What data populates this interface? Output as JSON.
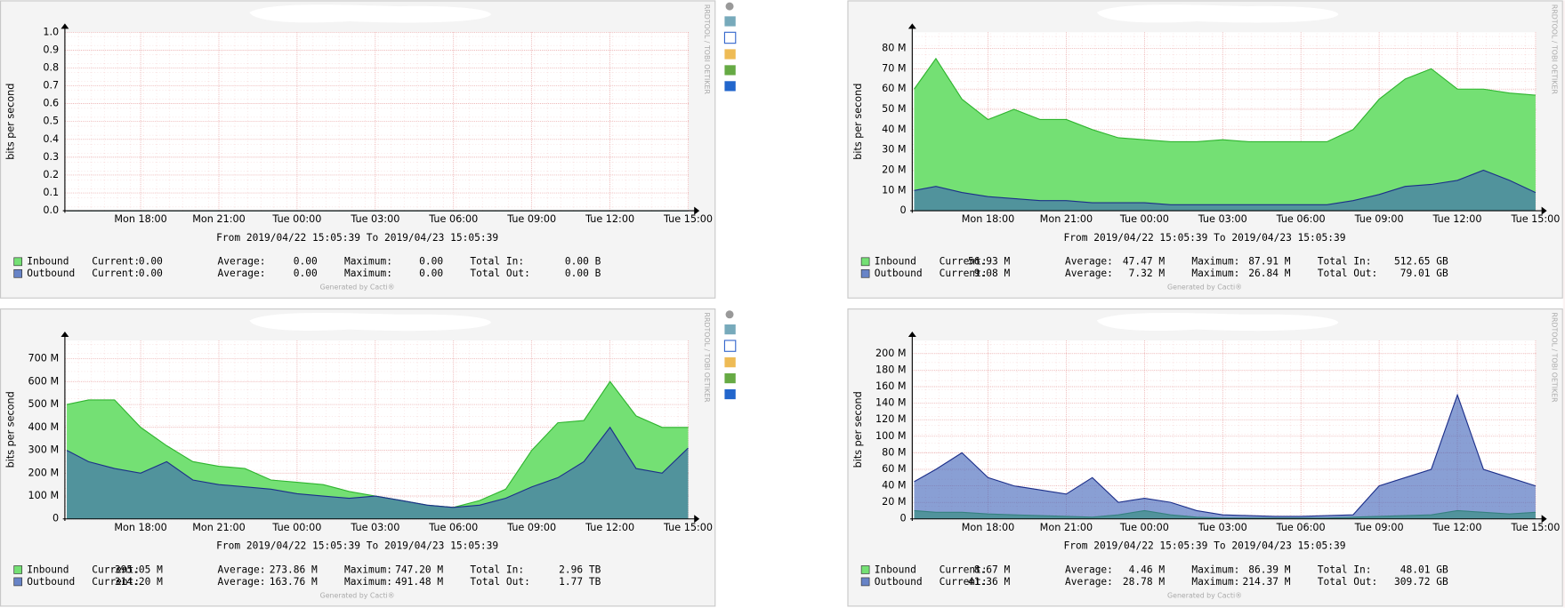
{
  "chart_data": [
    {
      "type": "area",
      "y_label": "bits per second",
      "period": "From 2019/04/22 15:05:39 To 2019/04/23 15:05:39",
      "footer": "Generated by Cacti®",
      "side_text": "RRDTOOL / TOBI OETIKER",
      "x": [
        "2019-04-22 15:10",
        "2019-04-22 16:00",
        "2019-04-22 17:00",
        "2019-04-22 18:00",
        "2019-04-22 19:00",
        "2019-04-22 20:00",
        "2019-04-22 21:00",
        "2019-04-22 22:00",
        "2019-04-22 23:00",
        "2019-04-23 00:00",
        "2019-04-23 01:00",
        "2019-04-23 02:00",
        "2019-04-23 03:00",
        "2019-04-23 04:00",
        "2019-04-23 05:00",
        "2019-04-23 06:00",
        "2019-04-23 07:00",
        "2019-04-23 08:00",
        "2019-04-23 09:00",
        "2019-04-23 10:00",
        "2019-04-23 11:00",
        "2019-04-23 12:00",
        "2019-04-23 13:00",
        "2019-04-23 14:00",
        "2019-04-23 15:00"
      ],
      "xlim": [
        "2019-04-22 15:05:39",
        "2019-04-23 15:05:39"
      ],
      "xticks": [
        {
          "value": "2019-04-22 18:00",
          "label": "Mon 18:00"
        },
        {
          "value": "2019-04-22 21:00",
          "label": "Mon 21:00"
        },
        {
          "value": "2019-04-23 00:00",
          "label": "Tue 00:00"
        },
        {
          "value": "2019-04-23 03:00",
          "label": "Tue 03:00"
        },
        {
          "value": "2019-04-23 06:00",
          "label": "Tue 06:00"
        },
        {
          "value": "2019-04-23 09:00",
          "label": "Tue 09:00"
        },
        {
          "value": "2019-04-23 12:00",
          "label": "Tue 12:00"
        },
        {
          "value": "2019-04-23 15:00",
          "label": "Tue 15:00"
        }
      ],
      "ylim": [
        0,
        1
      ],
      "yticks": [
        {
          "value": 0,
          "label": "0.0"
        },
        0.1,
        0.2,
        0.3,
        0.4,
        0.5,
        0.6,
        0.7,
        0.8,
        0.9,
        {
          "value": 1,
          "label": "1.0"
        }
      ],
      "grid": true,
      "stat_labels": [
        "Current:",
        "Average:",
        "Maximum:"
      ],
      "series": [
        {
          "name": "Inbound",
          "color": "#74e074",
          "line_color": "#2fb52f",
          "total_label": "Total In:",
          "stats": [
            "0.00",
            "0.00",
            "0.00",
            "0.00 B"
          ],
          "values": [
            0,
            0,
            0,
            0,
            0,
            0,
            0,
            0,
            0,
            0,
            0,
            0,
            0,
            0,
            0,
            0,
            0,
            0,
            0,
            0,
            0,
            0,
            0,
            0,
            0
          ]
        },
        {
          "name": "Outbound",
          "color": "#3a5fb8",
          "line_color": "#1c2f8a",
          "total_label": "Total Out:",
          "stats": [
            "0.00",
            "0.00",
            "0.00",
            "0.00 B"
          ],
          "values": [
            0,
            0,
            0,
            0,
            0,
            0,
            0,
            0,
            0,
            0,
            0,
            0,
            0,
            0,
            0,
            0,
            0,
            0,
            0,
            0,
            0,
            0,
            0,
            0,
            0
          ]
        }
      ]
    },
    {
      "type": "area",
      "y_label": "bits per second",
      "period": "From 2019/04/22 15:05:39 To 2019/04/23 15:05:39",
      "footer": "Generated by Cacti®",
      "side_text": "RRDTOOL / TOBI OETIKER",
      "x": [
        "2019-04-22 15:10",
        "2019-04-22 16:00",
        "2019-04-22 17:00",
        "2019-04-22 18:00",
        "2019-04-22 19:00",
        "2019-04-22 20:00",
        "2019-04-22 21:00",
        "2019-04-22 22:00",
        "2019-04-22 23:00",
        "2019-04-23 00:00",
        "2019-04-23 01:00",
        "2019-04-23 02:00",
        "2019-04-23 03:00",
        "2019-04-23 04:00",
        "2019-04-23 05:00",
        "2019-04-23 06:00",
        "2019-04-23 07:00",
        "2019-04-23 08:00",
        "2019-04-23 09:00",
        "2019-04-23 10:00",
        "2019-04-23 11:00",
        "2019-04-23 12:00",
        "2019-04-23 13:00",
        "2019-04-23 14:00",
        "2019-04-23 15:00"
      ],
      "xlim": [
        "2019-04-22 15:05:39",
        "2019-04-23 15:05:39"
      ],
      "xticks": [
        {
          "value": "2019-04-22 18:00",
          "label": "Mon 18:00"
        },
        {
          "value": "2019-04-22 21:00",
          "label": "Mon 21:00"
        },
        {
          "value": "2019-04-23 00:00",
          "label": "Tue 00:00"
        },
        {
          "value": "2019-04-23 03:00",
          "label": "Tue 03:00"
        },
        {
          "value": "2019-04-23 06:00",
          "label": "Tue 06:00"
        },
        {
          "value": "2019-04-23 09:00",
          "label": "Tue 09:00"
        },
        {
          "value": "2019-04-23 12:00",
          "label": "Tue 12:00"
        },
        {
          "value": "2019-04-23 15:00",
          "label": "Tue 15:00"
        }
      ],
      "ylim": [
        0,
        88
      ],
      "yticks": [
        0,
        {
          "value": 10,
          "label": "10 M"
        },
        {
          "value": 20,
          "label": "20 M"
        },
        {
          "value": 30,
          "label": "30 M"
        },
        {
          "value": 40,
          "label": "40 M"
        },
        {
          "value": 50,
          "label": "50 M"
        },
        {
          "value": 60,
          "label": "60 M"
        },
        {
          "value": 70,
          "label": "70 M"
        },
        {
          "value": 80,
          "label": "80 M"
        }
      ],
      "grid": true,
      "stat_labels": [
        "Current:",
        "Average:",
        "Maximum:"
      ],
      "series": [
        {
          "name": "Inbound",
          "color": "#74e074",
          "line_color": "#2fb52f",
          "total_label": "Total In:",
          "stats": [
            "56.93 M",
            "47.47 M",
            "87.91 M",
            "512.65 GB"
          ],
          "values": [
            60,
            75,
            55,
            45,
            50,
            45,
            45,
            40,
            36,
            35,
            34,
            34,
            35,
            34,
            34,
            34,
            34,
            40,
            55,
            65,
            70,
            60,
            60,
            58,
            57
          ]
        },
        {
          "name": "Outbound",
          "color": "#3a5fb8",
          "line_color": "#1c2f8a",
          "total_label": "Total Out:",
          "stats": [
            "9.08 M",
            "7.32 M",
            "26.84 M",
            "79.01 GB"
          ],
          "values": [
            10,
            12,
            9,
            7,
            6,
            5,
            5,
            4,
            4,
            4,
            3,
            3,
            3,
            3,
            3,
            3,
            3,
            5,
            8,
            12,
            13,
            15,
            20,
            15,
            9
          ]
        }
      ]
    },
    {
      "type": "area",
      "y_label": "bits per second",
      "period": "From 2019/04/22 15:05:39 To 2019/04/23 15:05:39",
      "footer": "Generated by Cacti®",
      "side_text": "RRDTOOL / TOBI OETIKER",
      "x": [
        "2019-04-22 15:10",
        "2019-04-22 16:00",
        "2019-04-22 17:00",
        "2019-04-22 18:00",
        "2019-04-22 19:00",
        "2019-04-22 20:00",
        "2019-04-22 21:00",
        "2019-04-22 22:00",
        "2019-04-22 23:00",
        "2019-04-23 00:00",
        "2019-04-23 01:00",
        "2019-04-23 02:00",
        "2019-04-23 03:00",
        "2019-04-23 04:00",
        "2019-04-23 05:00",
        "2019-04-23 06:00",
        "2019-04-23 07:00",
        "2019-04-23 08:00",
        "2019-04-23 09:00",
        "2019-04-23 10:00",
        "2019-04-23 11:00",
        "2019-04-23 12:00",
        "2019-04-23 13:00",
        "2019-04-23 14:00",
        "2019-04-23 15:00"
      ],
      "xlim": [
        "2019-04-22 15:05:39",
        "2019-04-23 15:05:39"
      ],
      "xticks": [
        {
          "value": "2019-04-22 18:00",
          "label": "Mon 18:00"
        },
        {
          "value": "2019-04-22 21:00",
          "label": "Mon 21:00"
        },
        {
          "value": "2019-04-23 00:00",
          "label": "Tue 00:00"
        },
        {
          "value": "2019-04-23 03:00",
          "label": "Tue 03:00"
        },
        {
          "value": "2019-04-23 06:00",
          "label": "Tue 06:00"
        },
        {
          "value": "2019-04-23 09:00",
          "label": "Tue 09:00"
        },
        {
          "value": "2019-04-23 12:00",
          "label": "Tue 12:00"
        },
        {
          "value": "2019-04-23 15:00",
          "label": "Tue 15:00"
        }
      ],
      "ylim": [
        0,
        780
      ],
      "yticks": [
        0,
        {
          "value": 100,
          "label": "100 M"
        },
        {
          "value": 200,
          "label": "200 M"
        },
        {
          "value": 300,
          "label": "300 M"
        },
        {
          "value": 400,
          "label": "400 M"
        },
        {
          "value": 500,
          "label": "500 M"
        },
        {
          "value": 600,
          "label": "600 M"
        },
        {
          "value": 700,
          "label": "700 M"
        }
      ],
      "grid": true,
      "stat_labels": [
        "Current:",
        "Average:",
        "Maximum:"
      ],
      "series": [
        {
          "name": "Inbound",
          "color": "#74e074",
          "line_color": "#2fb52f",
          "total_label": "Total In:",
          "stats": [
            "395.05 M",
            "273.86 M",
            "747.20 M",
            "2.96 TB"
          ],
          "values": [
            500,
            520,
            520,
            400,
            320,
            250,
            230,
            220,
            170,
            160,
            150,
            120,
            100,
            80,
            60,
            50,
            80,
            130,
            300,
            420,
            430,
            600,
            450,
            400,
            400
          ]
        },
        {
          "name": "Outbound",
          "color": "#3a5fb8",
          "line_color": "#1c2f8a",
          "total_label": "Total Out:",
          "stats": [
            "314.20 M",
            "163.76 M",
            "491.48 M",
            "1.77 TB"
          ],
          "values": [
            300,
            250,
            220,
            200,
            250,
            170,
            150,
            140,
            130,
            110,
            100,
            90,
            100,
            80,
            60,
            50,
            60,
            90,
            140,
            180,
            250,
            400,
            220,
            200,
            310
          ]
        }
      ]
    },
    {
      "type": "area",
      "y_label": "bits per second",
      "period": "From 2019/04/22 15:05:39 To 2019/04/23 15:05:39",
      "footer": "Generated by Cacti®",
      "side_text": "RRDTOOL / TOBI OETIKER",
      "x": [
        "2019-04-22 15:10",
        "2019-04-22 16:00",
        "2019-04-22 17:00",
        "2019-04-22 18:00",
        "2019-04-22 19:00",
        "2019-04-22 20:00",
        "2019-04-22 21:00",
        "2019-04-22 22:00",
        "2019-04-22 23:00",
        "2019-04-23 00:00",
        "2019-04-23 01:00",
        "2019-04-23 02:00",
        "2019-04-23 03:00",
        "2019-04-23 04:00",
        "2019-04-23 05:00",
        "2019-04-23 06:00",
        "2019-04-23 07:00",
        "2019-04-23 08:00",
        "2019-04-23 09:00",
        "2019-04-23 10:00",
        "2019-04-23 11:00",
        "2019-04-23 12:00",
        "2019-04-23 13:00",
        "2019-04-23 14:00",
        "2019-04-23 15:00"
      ],
      "xlim": [
        "2019-04-22 15:05:39",
        "2019-04-23 15:05:39"
      ],
      "xticks": [
        {
          "value": "2019-04-22 18:00",
          "label": "Mon 18:00"
        },
        {
          "value": "2019-04-22 21:00",
          "label": "Mon 21:00"
        },
        {
          "value": "2019-04-23 00:00",
          "label": "Tue 00:00"
        },
        {
          "value": "2019-04-23 03:00",
          "label": "Tue 03:00"
        },
        {
          "value": "2019-04-23 06:00",
          "label": "Tue 06:00"
        },
        {
          "value": "2019-04-23 09:00",
          "label": "Tue 09:00"
        },
        {
          "value": "2019-04-23 12:00",
          "label": "Tue 12:00"
        },
        {
          "value": "2019-04-23 15:00",
          "label": "Tue 15:00"
        }
      ],
      "ylim": [
        0,
        216
      ],
      "yticks": [
        0,
        {
          "value": 20,
          "label": "20 M"
        },
        {
          "value": 40,
          "label": "40 M"
        },
        {
          "value": 60,
          "label": "60 M"
        },
        {
          "value": 80,
          "label": "80 M"
        },
        {
          "value": 100,
          "label": "100 M"
        },
        {
          "value": 120,
          "label": "120 M"
        },
        {
          "value": 140,
          "label": "140 M"
        },
        {
          "value": 160,
          "label": "160 M"
        },
        {
          "value": 180,
          "label": "180 M"
        },
        {
          "value": 200,
          "label": "200 M"
        }
      ],
      "grid": true,
      "stat_labels": [
        "Current:",
        "Average:",
        "Maximum:"
      ],
      "series": [
        {
          "name": "Inbound",
          "color": "#74e074",
          "line_color": "#2fb52f",
          "total_label": "Total In:",
          "stats": [
            "8.67 M",
            "4.46 M",
            "86.39 M",
            "48.01 GB"
          ],
          "values": [
            10,
            8,
            8,
            6,
            5,
            4,
            3,
            2,
            5,
            10,
            5,
            2,
            1,
            1,
            1,
            1,
            1,
            2,
            3,
            4,
            5,
            10,
            8,
            6,
            8
          ]
        },
        {
          "name": "Outbound",
          "color": "#3a5fb8",
          "line_color": "#1c2f8a",
          "total_label": "Total Out:",
          "stats": [
            "41.36 M",
            "28.78 M",
            "214.37 M",
            "309.72 GB"
          ],
          "values": [
            45,
            60,
            80,
            50,
            40,
            35,
            30,
            50,
            20,
            25,
            20,
            10,
            5,
            4,
            3,
            3,
            4,
            5,
            40,
            50,
            60,
            150,
            60,
            50,
            40
          ]
        }
      ]
    }
  ]
}
